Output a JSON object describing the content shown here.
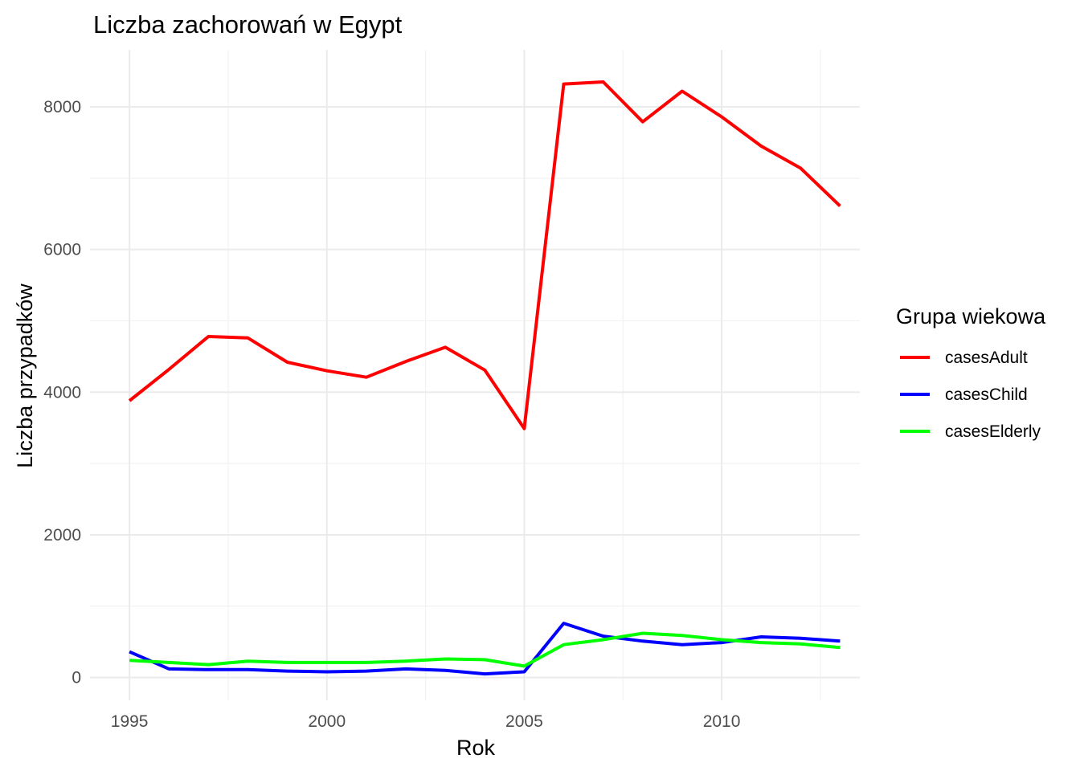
{
  "chart_data": {
    "type": "line",
    "title": "Liczba zachorowań w Egypt",
    "xlabel": "Rok",
    "ylabel": "Liczba przypadków",
    "xlim": [
      1994.0,
      2013.5
    ],
    "ylim": [
      -320,
      8800
    ],
    "x_ticks": [
      1995,
      2000,
      2005,
      2010
    ],
    "y_ticks": [
      0,
      2000,
      4000,
      6000,
      8000
    ],
    "grid": true,
    "legend": {
      "title": "Grupa wiekowa",
      "position": "right"
    },
    "x": [
      1995,
      1996,
      1997,
      1998,
      1999,
      2000,
      2001,
      2002,
      2003,
      2004,
      2005,
      2006,
      2007,
      2008,
      2009,
      2010,
      2011,
      2012,
      2013
    ],
    "series": [
      {
        "name": "casesAdult",
        "color": "#ff0000",
        "values": [
          3880,
          4320,
          4780,
          4760,
          4420,
          4300,
          4210,
          4430,
          4630,
          4310,
          3490,
          8320,
          8350,
          7790,
          8220,
          7860,
          7450,
          7140,
          6610
        ]
      },
      {
        "name": "casesChild",
        "color": "#0000ff",
        "values": [
          360,
          120,
          110,
          110,
          90,
          80,
          90,
          120,
          100,
          50,
          80,
          760,
          580,
          510,
          460,
          490,
          570,
          550,
          510
        ]
      },
      {
        "name": "casesElderly",
        "color": "#00ff00",
        "values": [
          240,
          210,
          180,
          230,
          210,
          210,
          210,
          230,
          260,
          250,
          160,
          460,
          530,
          620,
          590,
          530,
          490,
          470,
          420
        ]
      }
    ]
  }
}
